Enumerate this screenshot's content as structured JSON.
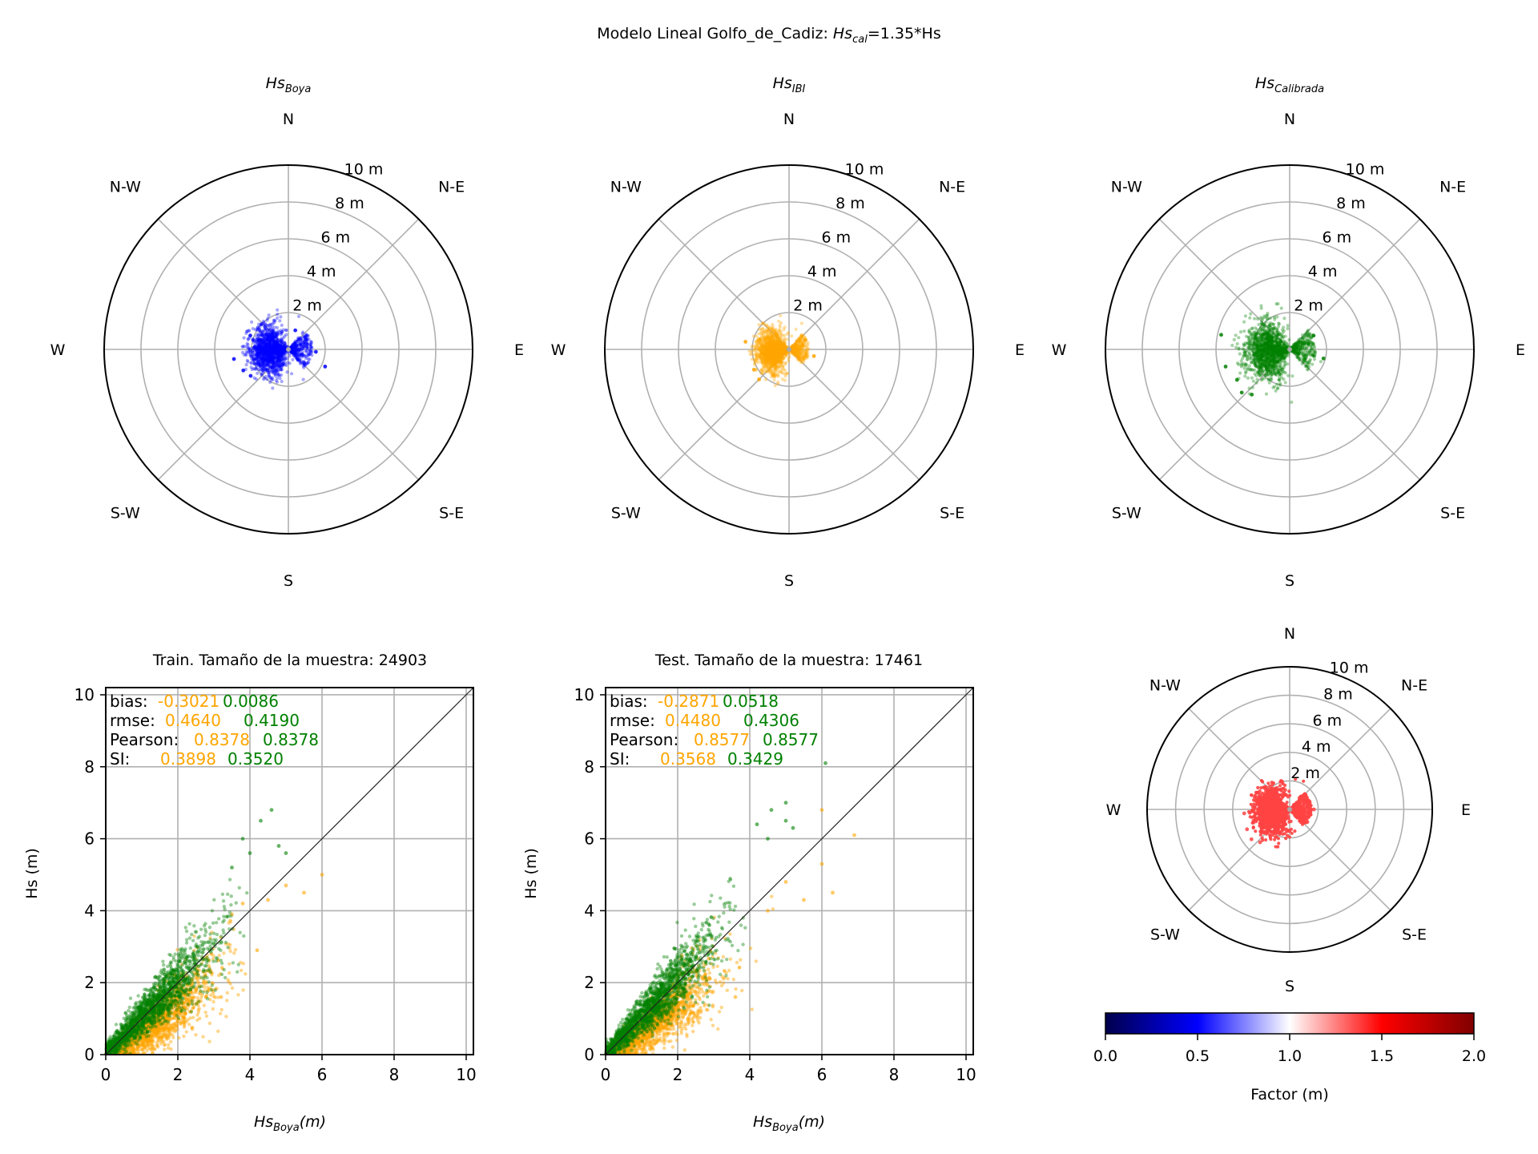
{
  "figure": {
    "title_main": "Modelo Lineal Golfo_de_Cadiz: ",
    "title_sym": "Hs",
    "title_sub": "cal",
    "title_rest": "=1.35*Hs"
  },
  "colors": {
    "boya": "#0000ff",
    "ibi": "#ffa500",
    "calibrada": "#008000",
    "factor": "#ff4444",
    "grid": "#b0b0b0",
    "diag": "#222222"
  },
  "chart_data": [
    {
      "type": "scatter",
      "projection": "polar",
      "title_sym": "Hs",
      "title_sub": "Boya",
      "directions": [
        "N",
        "N-E",
        "E",
        "S-E",
        "S",
        "S-W",
        "W",
        "N-W"
      ],
      "radial_ticks": [
        2,
        4,
        6,
        8,
        10
      ],
      "radial_tick_labels": [
        "2 m",
        "4 m",
        "6 m",
        "8 m",
        "10 m"
      ],
      "rlim": [
        0,
        10
      ],
      "color": "#0000ff",
      "cloud": {
        "dir_center_deg": 265,
        "hs_typical_m": 1.2,
        "hs_max_m": 3.0
      },
      "samples": [
        {
          "dir_deg": 290,
          "hs_m": 2.2
        },
        {
          "dir_deg": 260,
          "hs_m": 3.0
        },
        {
          "dir_deg": 245,
          "hs_m": 2.7
        },
        {
          "dir_deg": 235,
          "hs_m": 2.5
        },
        {
          "dir_deg": 115,
          "hs_m": 2.2
        },
        {
          "dir_deg": 95,
          "hs_m": 1.5
        },
        {
          "dir_deg": 60,
          "hs_m": 1.1
        },
        {
          "dir_deg": 20,
          "hs_m": 1.1
        }
      ]
    },
    {
      "type": "scatter",
      "projection": "polar",
      "title_sym": "Hs",
      "title_sub": "IBI",
      "directions": [
        "N",
        "N-E",
        "E",
        "S-E",
        "S",
        "S-W",
        "W",
        "N-W"
      ],
      "radial_ticks": [
        2,
        4,
        6,
        8,
        10
      ],
      "radial_tick_labels": [
        "2 m",
        "4 m",
        "6 m",
        "8 m",
        "10 m"
      ],
      "rlim": [
        0,
        10
      ],
      "color": "#ffa500",
      "cloud": {
        "dir_center_deg": 265,
        "hs_typical_m": 1.0,
        "hs_max_m": 2.6
      },
      "samples": [
        {
          "dir_deg": 280,
          "hs_m": 2.4
        },
        {
          "dir_deg": 240,
          "hs_m": 2.2
        },
        {
          "dir_deg": 225,
          "hs_m": 2.3
        },
        {
          "dir_deg": 105,
          "hs_m": 1.4
        },
        {
          "dir_deg": 60,
          "hs_m": 1.0
        }
      ]
    },
    {
      "type": "scatter",
      "projection": "polar",
      "title_sym": "Hs",
      "title_sub": "Calibrada",
      "directions": [
        "N",
        "N-E",
        "E",
        "S-E",
        "S",
        "S-W",
        "W",
        "N-W"
      ],
      "radial_ticks": [
        2,
        4,
        6,
        8,
        10
      ],
      "radial_tick_labels": [
        "2 m",
        "4 m",
        "6 m",
        "8 m",
        "10 m"
      ],
      "rlim": [
        0,
        10
      ],
      "color": "#008000",
      "cloud": {
        "dir_center_deg": 265,
        "hs_typical_m": 1.35,
        "hs_max_m": 4.0
      },
      "samples": [
        {
          "dir_deg": 282,
          "hs_m": 3.8
        },
        {
          "dir_deg": 255,
          "hs_m": 3.6
        },
        {
          "dir_deg": 240,
          "hs_m": 3.3
        },
        {
          "dir_deg": 228,
          "hs_m": 3.5
        },
        {
          "dir_deg": 220,
          "hs_m": 3.2
        },
        {
          "dir_deg": 105,
          "hs_m": 1.9
        },
        {
          "dir_deg": 60,
          "hs_m": 1.5
        }
      ]
    },
    {
      "type": "scatter",
      "title": "Train. Tamaño de la muestra: 24903",
      "xlabel_sym": "Hs",
      "xlabel_sub": "Boya",
      "xlabel_rest": "(m)",
      "ylabel": "Hs (m)",
      "xlim": [
        0,
        10.2
      ],
      "ylim": [
        0,
        10.2
      ],
      "ticks": [
        0,
        2,
        4,
        6,
        8,
        10
      ],
      "grid": true,
      "reference_line": "y = x",
      "stats": {
        "labels": [
          "bias:",
          "rmse:",
          "Pearson:",
          "SI:"
        ],
        "ibi": [
          "-0.3021",
          "0.4640",
          "0.8378",
          "0.3898"
        ],
        "calibrada": [
          "0.0086",
          "0.4190",
          "0.8378",
          "0.3520"
        ]
      },
      "series": [
        {
          "color": "#ffa500",
          "slope": 0.74,
          "x_max": 6.0,
          "points": [
            [
              3.5,
              3.9
            ],
            [
              3.8,
              4.2
            ],
            [
              4.5,
              4.3
            ],
            [
              5.0,
              4.7
            ],
            [
              5.5,
              4.5
            ],
            [
              6.0,
              5.0
            ],
            [
              4.2,
              2.9
            ],
            [
              3.2,
              1.6
            ]
          ]
        },
        {
          "color": "#008000",
          "slope": 1.0,
          "x_max": 5.0,
          "points": [
            [
              3.8,
              6.0
            ],
            [
              4.0,
              5.6
            ],
            [
              4.3,
              6.5
            ],
            [
              4.6,
              6.8
            ],
            [
              4.8,
              5.8
            ],
            [
              5.0,
              5.6
            ],
            [
              3.5,
              5.2
            ]
          ]
        }
      ]
    },
    {
      "type": "scatter",
      "title": "Test. Tamaño de la muestra: 17461",
      "xlabel_sym": "Hs",
      "xlabel_sub": "Boya",
      "xlabel_rest": "(m)",
      "ylabel": "Hs (m)",
      "xlim": [
        0,
        10.2
      ],
      "ylim": [
        0,
        10.2
      ],
      "ticks": [
        0,
        2,
        4,
        6,
        8,
        10
      ],
      "grid": true,
      "reference_line": "y = x",
      "stats": {
        "labels": [
          "bias:",
          "rmse:",
          "Pearson:",
          "SI:"
        ],
        "ibi": [
          "-0.2871",
          "0.4480",
          "0.8577",
          "0.3568"
        ],
        "calibrada": [
          "0.0518",
          "0.4306",
          "0.8577",
          "0.3429"
        ]
      },
      "series": [
        {
          "color": "#ffa500",
          "slope": 0.76,
          "x_max": 6.9,
          "points": [
            [
              4.5,
              4.0
            ],
            [
              5.0,
              4.8
            ],
            [
              5.5,
              4.3
            ],
            [
              6.0,
              5.3
            ],
            [
              6.3,
              4.5
            ],
            [
              6.9,
              6.1
            ],
            [
              6.0,
              6.8
            ],
            [
              3.6,
              1.6
            ]
          ]
        },
        {
          "color": "#008000",
          "slope": 1.02,
          "x_max": 5.5,
          "points": [
            [
              4.2,
              6.4
            ],
            [
              4.5,
              6.0
            ],
            [
              4.6,
              6.8
            ],
            [
              5.0,
              6.5
            ],
            [
              5.2,
              6.3
            ],
            [
              5.0,
              7.0
            ],
            [
              6.1,
              8.1
            ]
          ]
        }
      ]
    },
    {
      "type": "scatter",
      "projection": "polar",
      "directions": [
        "N",
        "N-E",
        "E",
        "S-E",
        "S",
        "S-W",
        "W",
        "N-W"
      ],
      "radial_ticks": [
        2,
        4,
        6,
        8,
        10
      ],
      "radial_tick_labels": [
        "2 m",
        "4 m",
        "6 m",
        "8 m",
        "10 m"
      ],
      "rlim": [
        0,
        10
      ],
      "color": "#ff4444",
      "cloud": {
        "dir_center_deg": 265,
        "hs_typical_m": 1.4,
        "hs_max_m": 3.4
      },
      "samples": [
        {
          "dir_deg": 265,
          "hs_m": 3.2
        },
        {
          "dir_deg": 245,
          "hs_m": 3.3
        },
        {
          "dir_deg": 232,
          "hs_m": 3.4
        },
        {
          "dir_deg": 222,
          "hs_m": 3.1
        },
        {
          "dir_deg": 90,
          "hs_m": 1.7
        }
      ],
      "colorbar": {
        "label": "Factor (m)",
        "ticks": [
          "0.0",
          "0.5",
          "1.0",
          "1.5",
          "2.0"
        ],
        "range": [
          0,
          2
        ],
        "colormap": "seismic"
      }
    }
  ]
}
